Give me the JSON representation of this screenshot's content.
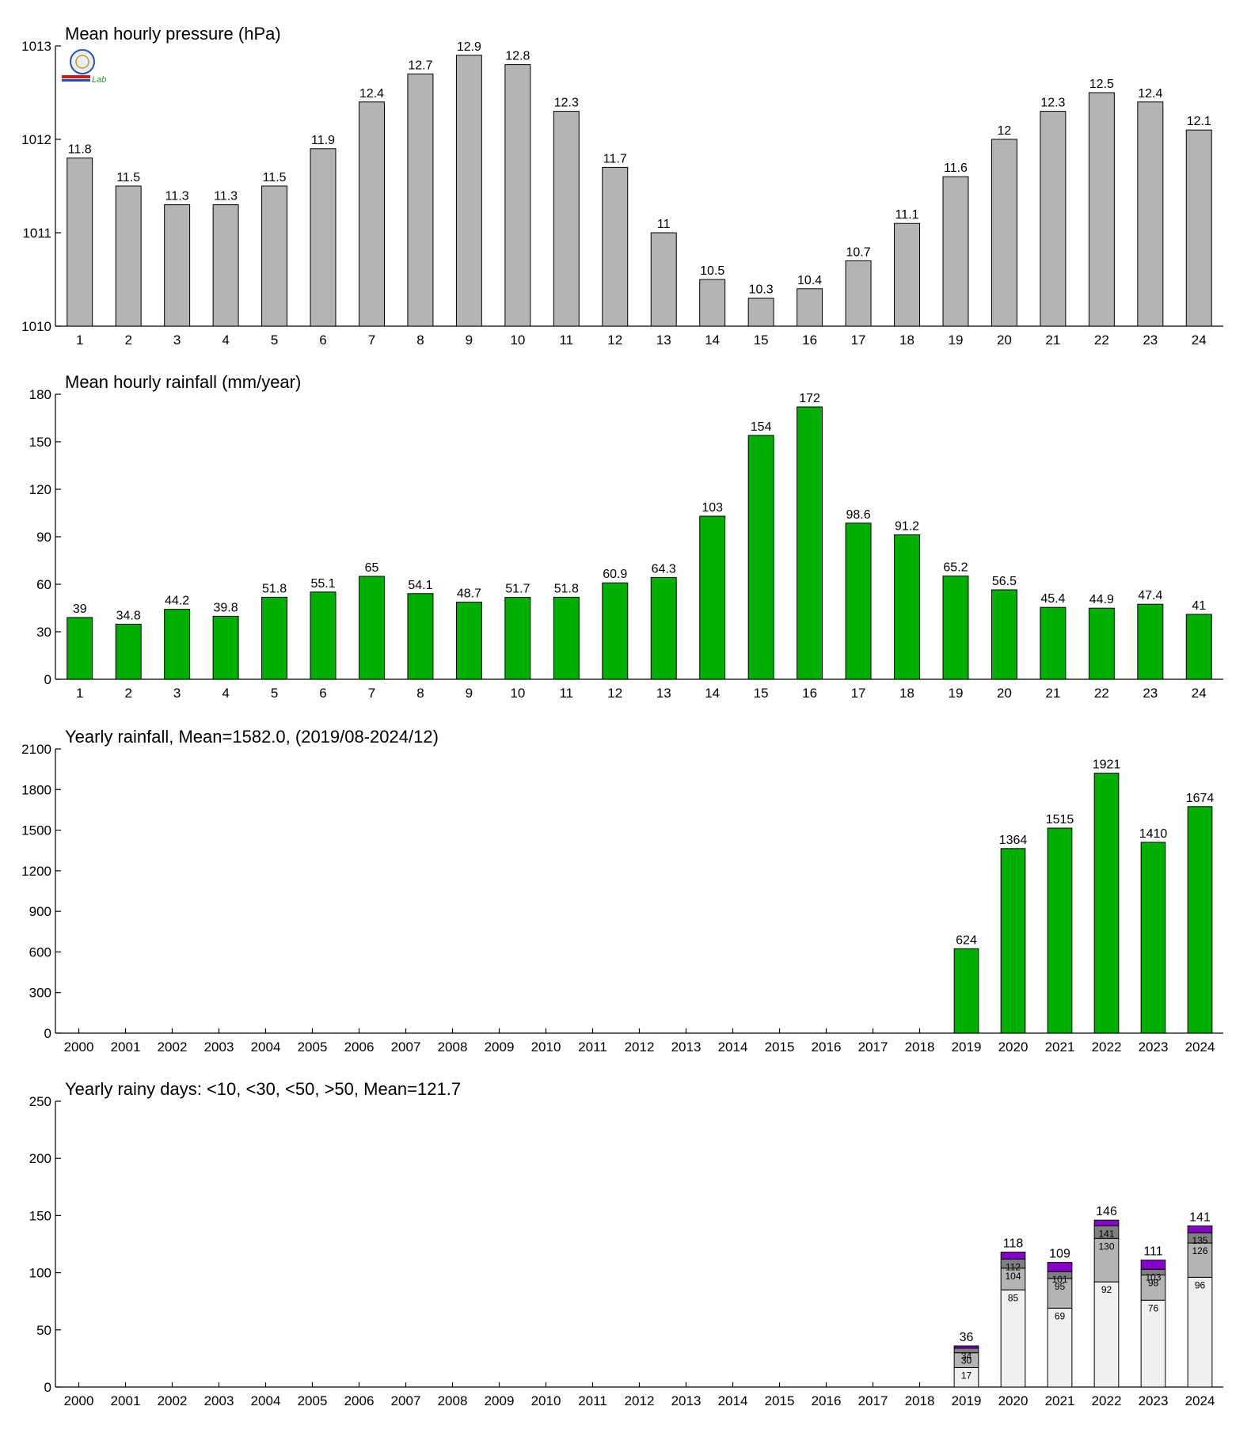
{
  "chart_data": [
    {
      "type": "bar",
      "title": "Mean hourly pressure (hPa)",
      "categories": [
        "1",
        "2",
        "3",
        "4",
        "5",
        "6",
        "7",
        "8",
        "9",
        "10",
        "11",
        "12",
        "13",
        "14",
        "15",
        "16",
        "17",
        "18",
        "19",
        "20",
        "21",
        "22",
        "23",
        "24"
      ],
      "values": [
        1011.8,
        1011.5,
        1011.3,
        1011.3,
        1011.5,
        1011.9,
        1012.4,
        1012.7,
        1012.9,
        1012.8,
        1012.3,
        1011.7,
        1011.0,
        1010.5,
        1010.3,
        1010.4,
        1010.7,
        1011.1,
        1011.6,
        1012.0,
        1012.3,
        1012.5,
        1012.4,
        1012.1
      ],
      "labels": [
        "11.8",
        "11.5",
        "11.3",
        "11.3",
        "11.5",
        "11.9",
        "12.4",
        "12.7",
        "12.9",
        "12.8",
        "12.3",
        "11.7",
        "11",
        "10.5",
        "10.3",
        "10.4",
        "10.7",
        "11.1",
        "11.6",
        "12",
        "12.3",
        "12.5",
        "12.4",
        "12.1"
      ],
      "ylim": [
        1010,
        1013
      ],
      "yticks": [
        1010,
        1011,
        1012,
        1013
      ],
      "color": "#b4b4b4",
      "xlabel": "",
      "ylabel": ""
    },
    {
      "type": "bar",
      "title": "Mean hourly rainfall (mm/year)",
      "categories": [
        "1",
        "2",
        "3",
        "4",
        "5",
        "6",
        "7",
        "8",
        "9",
        "10",
        "11",
        "12",
        "13",
        "14",
        "15",
        "16",
        "17",
        "18",
        "19",
        "20",
        "21",
        "22",
        "23",
        "24"
      ],
      "values": [
        39,
        34.8,
        44.2,
        39.8,
        51.8,
        55.1,
        65,
        54.1,
        48.7,
        51.7,
        51.8,
        60.9,
        64.3,
        103,
        154,
        172,
        98.6,
        91.2,
        65.2,
        56.5,
        45.4,
        44.9,
        47.4,
        41
      ],
      "labels": [
        "39",
        "34.8",
        "44.2",
        "39.8",
        "51.8",
        "55.1",
        "65",
        "54.1",
        "48.7",
        "51.7",
        "51.8",
        "60.9",
        "64.3",
        "103",
        "154",
        "172",
        "98.6",
        "91.2",
        "65.2",
        "56.5",
        "45.4",
        "44.9",
        "47.4",
        "41"
      ],
      "ylim": [
        0,
        180
      ],
      "yticks": [
        0,
        30,
        60,
        90,
        120,
        150,
        180
      ],
      "color": "#00b000",
      "xlabel": "",
      "ylabel": ""
    },
    {
      "type": "bar",
      "title": "Yearly rainfall, Mean=1582.0, (2019/08-2024/12)",
      "categories": [
        "2000",
        "2001",
        "2002",
        "2003",
        "2004",
        "2005",
        "2006",
        "2007",
        "2008",
        "2009",
        "2010",
        "2011",
        "2012",
        "2013",
        "2014",
        "2015",
        "2016",
        "2017",
        "2018",
        "2019",
        "2020",
        "2021",
        "2022",
        "2023",
        "2024"
      ],
      "values": [
        null,
        null,
        null,
        null,
        null,
        null,
        null,
        null,
        null,
        null,
        null,
        null,
        null,
        null,
        null,
        null,
        null,
        null,
        null,
        624,
        1364,
        1515,
        1921,
        1410,
        1674
      ],
      "labels": [
        "",
        "",
        "",
        "",
        "",
        "",
        "",
        "",
        "",
        "",
        "",
        "",
        "",
        "",
        "",
        "",
        "",
        "",
        "",
        "624",
        "1364",
        "1515",
        "1921",
        "1410",
        "1674"
      ],
      "ylim": [
        0,
        2100
      ],
      "yticks": [
        0,
        300,
        600,
        900,
        1200,
        1500,
        1800,
        2100
      ],
      "color": "#00b000",
      "xlabel": "",
      "ylabel": ""
    },
    {
      "type": "bar",
      "stacked": true,
      "title": "Yearly rainy days: <10, <30, <50, >50, Mean=121.7",
      "categories": [
        "2000",
        "2001",
        "2002",
        "2003",
        "2004",
        "2005",
        "2006",
        "2007",
        "2008",
        "2009",
        "2010",
        "2011",
        "2012",
        "2013",
        "2014",
        "2015",
        "2016",
        "2017",
        "2018",
        "2019",
        "2020",
        "2021",
        "2022",
        "2023",
        "2024"
      ],
      "cumulative": [
        null,
        null,
        null,
        null,
        null,
        null,
        null,
        null,
        null,
        null,
        null,
        null,
        null,
        null,
        null,
        null,
        null,
        null,
        null,
        [
          17,
          30,
          34,
          36
        ],
        [
          85,
          104,
          112,
          118
        ],
        [
          69,
          95,
          101,
          109
        ],
        [
          92,
          130,
          141,
          146
        ],
        [
          76,
          98,
          103,
          111
        ],
        [
          96,
          126,
          135,
          141
        ]
      ],
      "labels": [
        null,
        null,
        null,
        null,
        null,
        null,
        null,
        null,
        null,
        null,
        null,
        null,
        null,
        null,
        null,
        null,
        null,
        null,
        null,
        [
          "17",
          "30",
          "34",
          "36"
        ],
        [
          "85",
          "104",
          "112",
          "118"
        ],
        [
          "69",
          "95",
          "101",
          "109"
        ],
        [
          "92",
          "130",
          "141",
          "146"
        ],
        [
          "76",
          "98",
          "103",
          "111"
        ],
        [
          "96",
          "126",
          "135",
          "141"
        ]
      ],
      "series_colors": [
        "#f0f0f0",
        "#b4b4b4",
        "#808080",
        "#8800cc"
      ],
      "ylim": [
        0,
        250
      ],
      "yticks": [
        0,
        50,
        100,
        150,
        200,
        250
      ],
      "xlabel": "",
      "ylabel": ""
    }
  ],
  "logo": {
    "text": "Lab"
  }
}
